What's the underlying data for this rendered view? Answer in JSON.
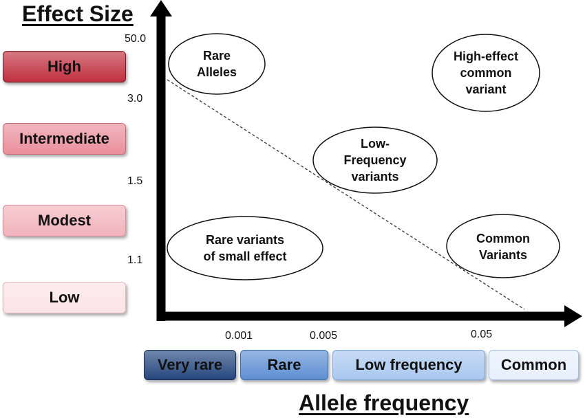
{
  "y_axis": {
    "title": "Effect Size",
    "ticks": [
      "50.0",
      "3.0",
      "1.5",
      "1.1"
    ],
    "categories": [
      {
        "label": "High",
        "color": "#c0303f"
      },
      {
        "label": "Intermediate",
        "color": "#ea8f9c"
      },
      {
        "label": "Modest",
        "color": "#f1b3bb"
      },
      {
        "label": "Low",
        "color": "#fbe3e7"
      }
    ]
  },
  "x_axis": {
    "title": "Allele frequency",
    "ticks": [
      "0.001",
      "0.005",
      "0.05"
    ],
    "categories": [
      {
        "label": "Very rare",
        "color": "#25477e"
      },
      {
        "label": "Rare",
        "color": "#5e8fd3"
      },
      {
        "label": "Low frequency",
        "color": "#a9c8ef"
      },
      {
        "label": "Common",
        "color": "#e6f0fb"
      }
    ]
  },
  "regions": [
    {
      "lines": [
        "Rare",
        "Alleles"
      ]
    },
    {
      "lines": [
        "High-effect",
        "common",
        "variant"
      ]
    },
    {
      "lines": [
        "Low-",
        "Frequency",
        "variants"
      ]
    },
    {
      "lines": [
        "Rare variants",
        "of small effect"
      ]
    },
    {
      "lines": [
        "Common",
        "Variants"
      ]
    }
  ]
}
